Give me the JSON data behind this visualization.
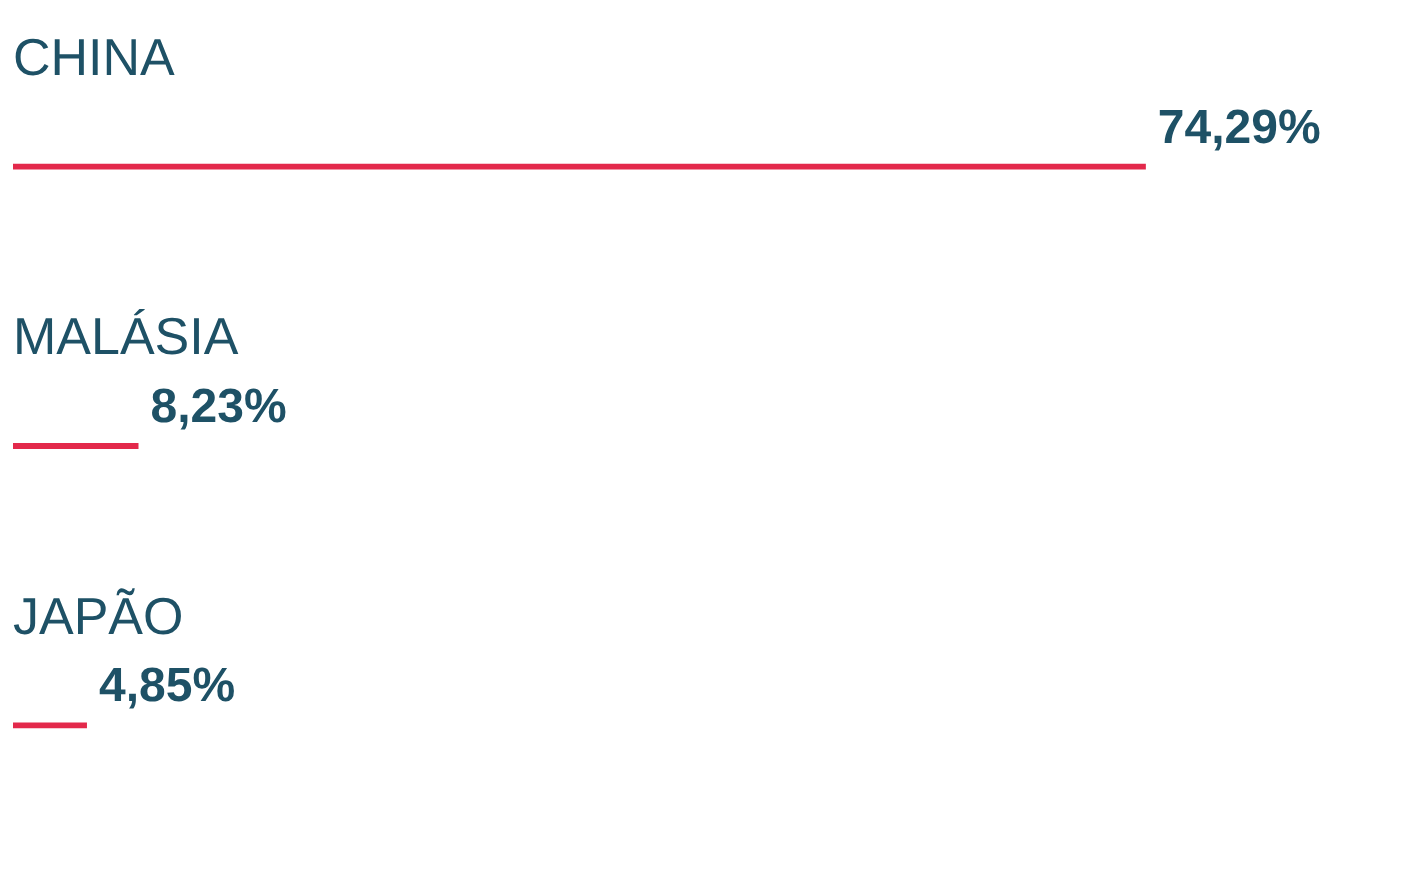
{
  "chart_data": {
    "type": "bar",
    "orientation": "horizontal",
    "categories": [
      "CHINA",
      "MALÁSIA",
      "JAPÃO"
    ],
    "values": [
      74.29,
      8.23,
      4.85
    ],
    "value_labels": [
      "74,29%",
      "8,23%",
      "4,85%"
    ],
    "color": "#e3294b"
  }
}
